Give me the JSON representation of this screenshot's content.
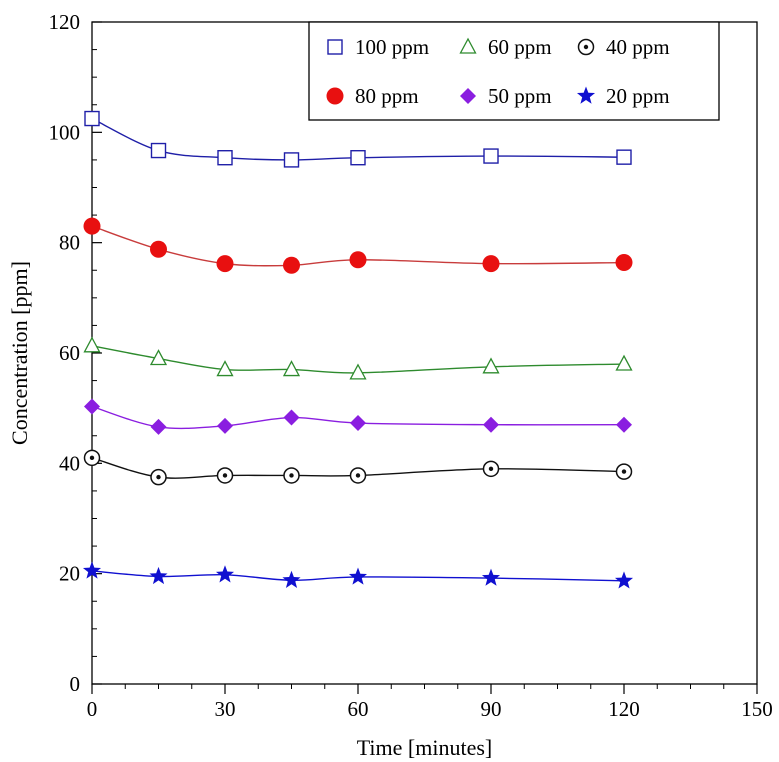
{
  "chart_data": {
    "type": "line",
    "xlabel": "Time [minutes]",
    "ylabel": "Concentration [ppm]",
    "xlim": [
      0,
      150
    ],
    "ylim": [
      0,
      120
    ],
    "xticks": [
      "0",
      "30",
      "60",
      "90",
      "120",
      "150"
    ],
    "yticks": [
      "0",
      "20",
      "40",
      "60",
      "80",
      "100",
      "120"
    ],
    "grid": false,
    "legend_position": "top-right",
    "x": [
      0,
      15,
      30,
      45,
      60,
      90,
      120
    ],
    "series": [
      {
        "name": "100 ppm",
        "marker": "open-square",
        "color": "#1f1fa8",
        "line_color": "#1f1fa8",
        "values": [
          102.5,
          96.7,
          95.4,
          95.0,
          95.4,
          95.7,
          95.5
        ]
      },
      {
        "name": "80 ppm",
        "marker": "filled-circle",
        "color": "#e81010",
        "line_color": "#c83c3c",
        "values": [
          83.0,
          78.8,
          76.2,
          75.9,
          76.9,
          76.2,
          76.4
        ]
      },
      {
        "name": "60 ppm",
        "marker": "open-triangle",
        "color": "#2e8b2e",
        "line_color": "#2e8b2e",
        "values": [
          61.3,
          59.0,
          57.0,
          57.0,
          56.4,
          57.5,
          58.0
        ]
      },
      {
        "name": "50 ppm",
        "marker": "filled-diamond",
        "color": "#8a1ee0",
        "line_color": "#8a1ee0",
        "values": [
          50.3,
          46.6,
          46.8,
          48.3,
          47.3,
          47.0,
          47.0
        ]
      },
      {
        "name": "40 ppm",
        "marker": "circle-dot",
        "color": "#111111",
        "line_color": "#111111",
        "values": [
          41.0,
          37.5,
          37.8,
          37.8,
          37.8,
          39.0,
          38.5
        ]
      },
      {
        "name": "20 ppm",
        "marker": "filled-star",
        "color": "#1010d0",
        "line_color": "#1010d0",
        "values": [
          20.5,
          19.5,
          19.8,
          18.8,
          19.4,
          19.2,
          18.7
        ]
      }
    ],
    "legend_layout": [
      [
        "100 ppm",
        "60 ppm",
        "40 ppm"
      ],
      [
        "80 ppm",
        "50 ppm",
        "20 ppm"
      ]
    ]
  }
}
